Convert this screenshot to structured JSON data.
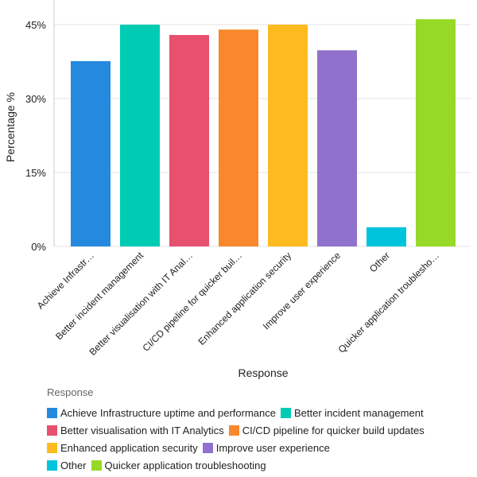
{
  "chart_data": {
    "type": "bar",
    "categories": [
      "Achieve Infrastructure uptime and performance",
      "Better incident management",
      "Better visualisation with IT Analytics",
      "CI/CD pipeline for quicker build updates",
      "Enhanced application security",
      "Improve user experience",
      "Other",
      "Quicker application troubleshooting"
    ],
    "tick_labels": [
      "Achieve Infrastr…",
      "Better incident management",
      "Better visualisation with IT Anal…",
      "CI/CD pipeline for quicker buil…",
      "Enhanced application security",
      "Improve user experience",
      "Other",
      "Quicker application troublesho…"
    ],
    "values": [
      37.6,
      45.0,
      42.9,
      44.0,
      45.0,
      39.8,
      3.9,
      46.1
    ],
    "colors": [
      "#2589e0",
      "#00ccb3",
      "#e8506f",
      "#f8882b",
      "#fdbb20",
      "#9072cc",
      "#00c4dc",
      "#97d927"
    ],
    "xlabel": "Response",
    "ylabel": "Percentage %",
    "ylim": [
      0,
      46.5
    ],
    "yticks": [
      0,
      15,
      30,
      45
    ],
    "ytick_labels": [
      "0%",
      "15%",
      "30%",
      "45%"
    ],
    "grid": true,
    "legend_title": "Response",
    "legend_position": "bottom"
  }
}
